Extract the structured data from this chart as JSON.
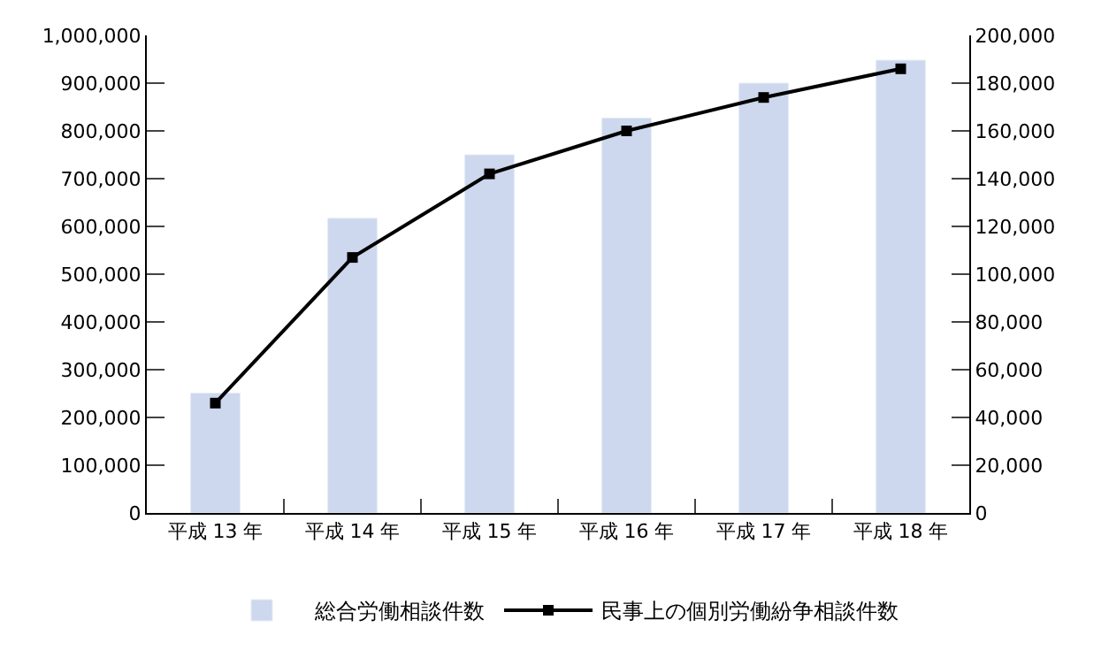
{
  "chart_data": {
    "type": "bar",
    "categories": [
      "平成 13 年",
      "平成 14 年",
      "平成 15 年",
      "平成 16 年",
      "平成 17 年",
      "平成 18 年"
    ],
    "series": [
      {
        "name": "総合労働相談件数",
        "color": "#cdd8ee",
        "values": [
          251000,
          617000,
          750000,
          827000,
          900000,
          948000
        ]
      },
      {
        "name": "民事上の個別労働紛争相談件数",
        "type": "line",
        "axis": "y2",
        "color": "#000000",
        "values": [
          46000,
          107000,
          142000,
          160000,
          174000,
          186000
        ]
      }
    ],
    "ylim": [
      0,
      1000000
    ],
    "yticks": [
      {
        "value": 0,
        "label": "0"
      },
      {
        "value": 100000,
        "label": "100,000"
      },
      {
        "value": 200000,
        "label": "200,000"
      },
      {
        "value": 300000,
        "label": "300,000"
      },
      {
        "value": 400000,
        "label": "400,000"
      },
      {
        "value": 500000,
        "label": "500,000"
      },
      {
        "value": 600000,
        "label": "600,000"
      },
      {
        "value": 700000,
        "label": "700,000"
      },
      {
        "value": 800000,
        "label": "800,000"
      },
      {
        "value": 900000,
        "label": "900,000"
      },
      {
        "value": 1000000,
        "label": "1,000,000"
      }
    ],
    "y2lim": [
      0,
      200000
    ],
    "y2ticks": [
      {
        "value": 0,
        "label": "0"
      },
      {
        "value": 20000,
        "label": "20,000"
      },
      {
        "value": 40000,
        "label": "40,000"
      },
      {
        "value": 60000,
        "label": "60,000"
      },
      {
        "value": 80000,
        "label": "80,000"
      },
      {
        "value": 100000,
        "label": "100,000"
      },
      {
        "value": 120000,
        "label": "120,000"
      },
      {
        "value": 140000,
        "label": "140,000"
      },
      {
        "value": 160000,
        "label": "160,000"
      },
      {
        "value": 180000,
        "label": "180,000"
      },
      {
        "value": 200000,
        "label": "200,000"
      }
    ],
    "legend": "bottom",
    "marker": "square",
    "line_style": "solid"
  }
}
